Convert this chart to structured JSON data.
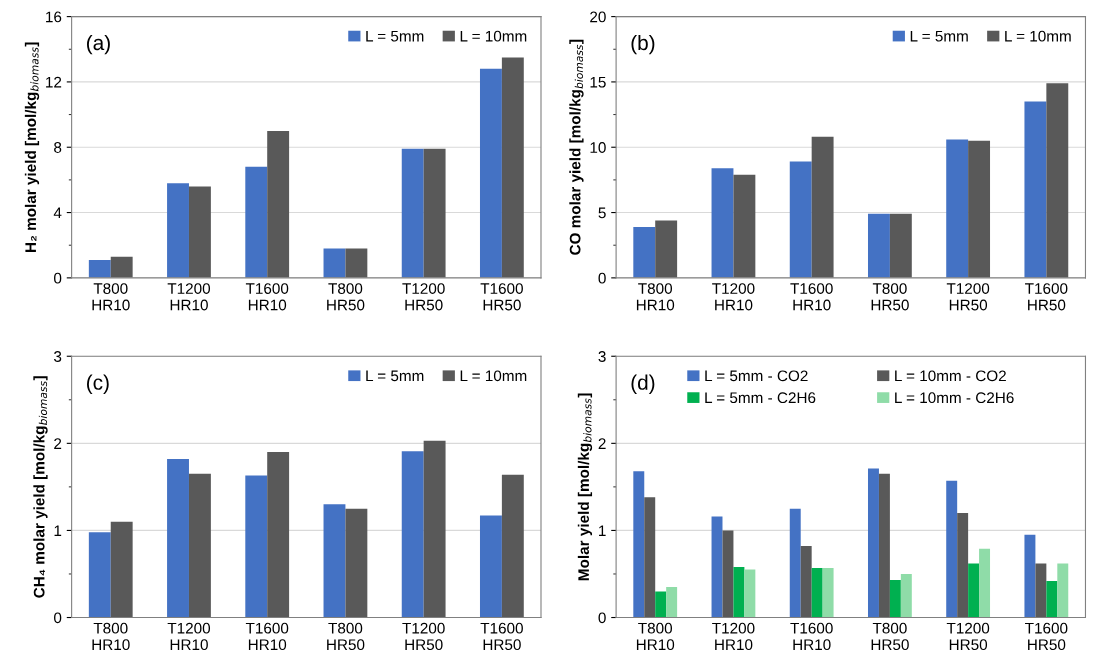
{
  "chart_data": [
    {
      "type": "bar",
      "ylabel": "H₂ molar yield [mol/kg$_{biomass}$]",
      "annotations": [
        "(a)"
      ],
      "categories": [
        "T800\nHR10",
        "T1200\nHR10",
        "T1600\nHR10",
        "T800\nHR50",
        "T1200\nHR50",
        "T1600\nHR50"
      ],
      "series": [
        {
          "name": "L = 5mm",
          "color": "#4472c4",
          "values": [
            1.1,
            5.8,
            6.8,
            1.8,
            7.9,
            12.8
          ]
        },
        {
          "name": "L = 10mm",
          "color": "#595959",
          "values": [
            1.3,
            5.6,
            9.0,
            1.8,
            7.9,
            13.5
          ]
        }
      ],
      "ylim": [
        0,
        16
      ],
      "yticks": [
        0,
        {
          "value": 2,
          "label": null
        },
        4,
        {
          "value": 6,
          "label": null
        },
        8,
        {
          "value": 10,
          "label": null
        },
        12,
        {
          "value": 14,
          "label": null
        },
        16
      ],
      "grid": "y",
      "legend": "top right"
    },
    {
      "type": "bar",
      "ylabel": "CO molar yield [mol/kg$_{biomass}$]",
      "annotations": [
        "(b)"
      ],
      "categories": [
        "T800\nHR10",
        "T1200\nHR10",
        "T1600\nHR10",
        "T800\nHR50",
        "T1200\nHR50",
        "T1600\nHR50"
      ],
      "series": [
        {
          "name": "L = 5mm",
          "color": "#4472c4",
          "values": [
            3.9,
            8.4,
            8.9,
            4.9,
            10.6,
            13.5
          ]
        },
        {
          "name": "L = 10mm",
          "color": "#595959",
          "values": [
            4.4,
            7.9,
            10.8,
            4.9,
            10.5,
            14.9
          ]
        }
      ],
      "ylim": [
        0,
        20
      ],
      "yticks": [
        0,
        {
          "value": 2.5,
          "label": null
        },
        5,
        {
          "value": 7.5,
          "label": null
        },
        10,
        {
          "value": 12.5,
          "label": null
        },
        15,
        {
          "value": 17.5,
          "label": null
        },
        20
      ],
      "grid": "y",
      "legend": "top right"
    },
    {
      "type": "bar",
      "ylabel": "CH₄ molar yield [mol/kg$_{biomass}$]",
      "annotations": [
        "(c)"
      ],
      "categories": [
        "T800\nHR10",
        "T1200\nHR10",
        "T1600\nHR10",
        "T800\nHR50",
        "T1200\nHR50",
        "T1600\nHR50"
      ],
      "series": [
        {
          "name": "L = 5mm",
          "color": "#4472c4",
          "values": [
            0.98,
            1.82,
            1.63,
            1.3,
            1.91,
            1.17
          ]
        },
        {
          "name": "L = 10mm",
          "color": "#595959",
          "values": [
            1.1,
            1.65,
            1.9,
            1.25,
            2.03,
            1.64
          ]
        }
      ],
      "ylim": [
        0,
        3
      ],
      "yticks": [
        0,
        {
          "value": 0.5,
          "label": null
        },
        1,
        {
          "value": 1.5,
          "label": null
        },
        2,
        {
          "value": 2.5,
          "label": null
        },
        3
      ],
      "grid": "y",
      "legend": "top right"
    },
    {
      "type": "bar",
      "ylabel": "Molar yield [mol/kg$_{biomass}$]",
      "annotations": [
        "(d)"
      ],
      "categories": [
        "T800\nHR10",
        "T1200\nHR10",
        "T1600\nHR10",
        "T800\nHR50",
        "T1200\nHR50",
        "T1600\nHR50"
      ],
      "series": [
        {
          "name": "L = 5mm - CO2",
          "color": "#4472c4",
          "values": [
            1.68,
            1.16,
            1.25,
            1.71,
            1.57,
            0.95
          ]
        },
        {
          "name": "L = 10mm - CO2",
          "color": "#595959",
          "values": [
            1.38,
            1.0,
            0.82,
            1.65,
            1.2,
            0.62
          ]
        },
        {
          "name": "L = 5mm - C2H6",
          "color": "#00b050",
          "values": [
            0.3,
            0.58,
            0.57,
            0.43,
            0.62,
            0.42
          ]
        },
        {
          "name": "L = 10mm - C2H6",
          "color": "#8fdca8",
          "values": [
            0.35,
            0.55,
            0.57,
            0.5,
            0.79,
            0.62
          ]
        }
      ],
      "ylim": [
        0,
        3
      ],
      "yticks": [
        0,
        {
          "value": 0.5,
          "label": null
        },
        1,
        {
          "value": 1.5,
          "label": null
        },
        2,
        {
          "value": 2.5,
          "label": null
        },
        3
      ],
      "grid": "y",
      "legend": "top"
    }
  ]
}
